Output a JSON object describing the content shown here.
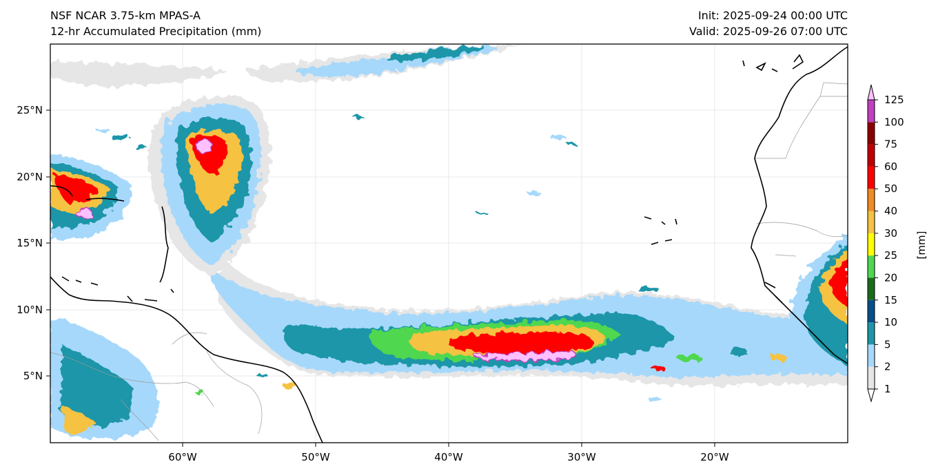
{
  "titles": {
    "model": "NSF NCAR 3.75-km MPAS-A",
    "field": "12-hr Accumulated Precipitation (mm)",
    "init": "Init: 2025-09-24 00:00 UTC",
    "valid": "Valid: 2025-09-26 07:00 UTC"
  },
  "map": {
    "lon_ticks": [
      "60°W",
      "50°W",
      "40°W",
      "30°W",
      "20°W"
    ],
    "lat_ticks": [
      "25°N",
      "20°N",
      "15°N",
      "10°N",
      "5°N"
    ]
  },
  "colorbar": {
    "label": "[mm]",
    "levels": [
      "1",
      "2",
      "5",
      "10",
      "15",
      "20",
      "25",
      "30",
      "40",
      "50",
      "60",
      "75",
      "100",
      "125"
    ],
    "colors": [
      "#e6e6e6",
      "#a6d8fb",
      "#1e96a8",
      "#064e8a",
      "#1c6b1c",
      "#4fd74f",
      "#ffff00",
      "#f5c242",
      "#f08a24",
      "#ff0000",
      "#c00000",
      "#8b0000",
      "#c040c0",
      "#ffc0ff"
    ]
  },
  "colors": {
    "coast": "#000000",
    "border": "#999999",
    "grid": "#dddddd"
  }
}
